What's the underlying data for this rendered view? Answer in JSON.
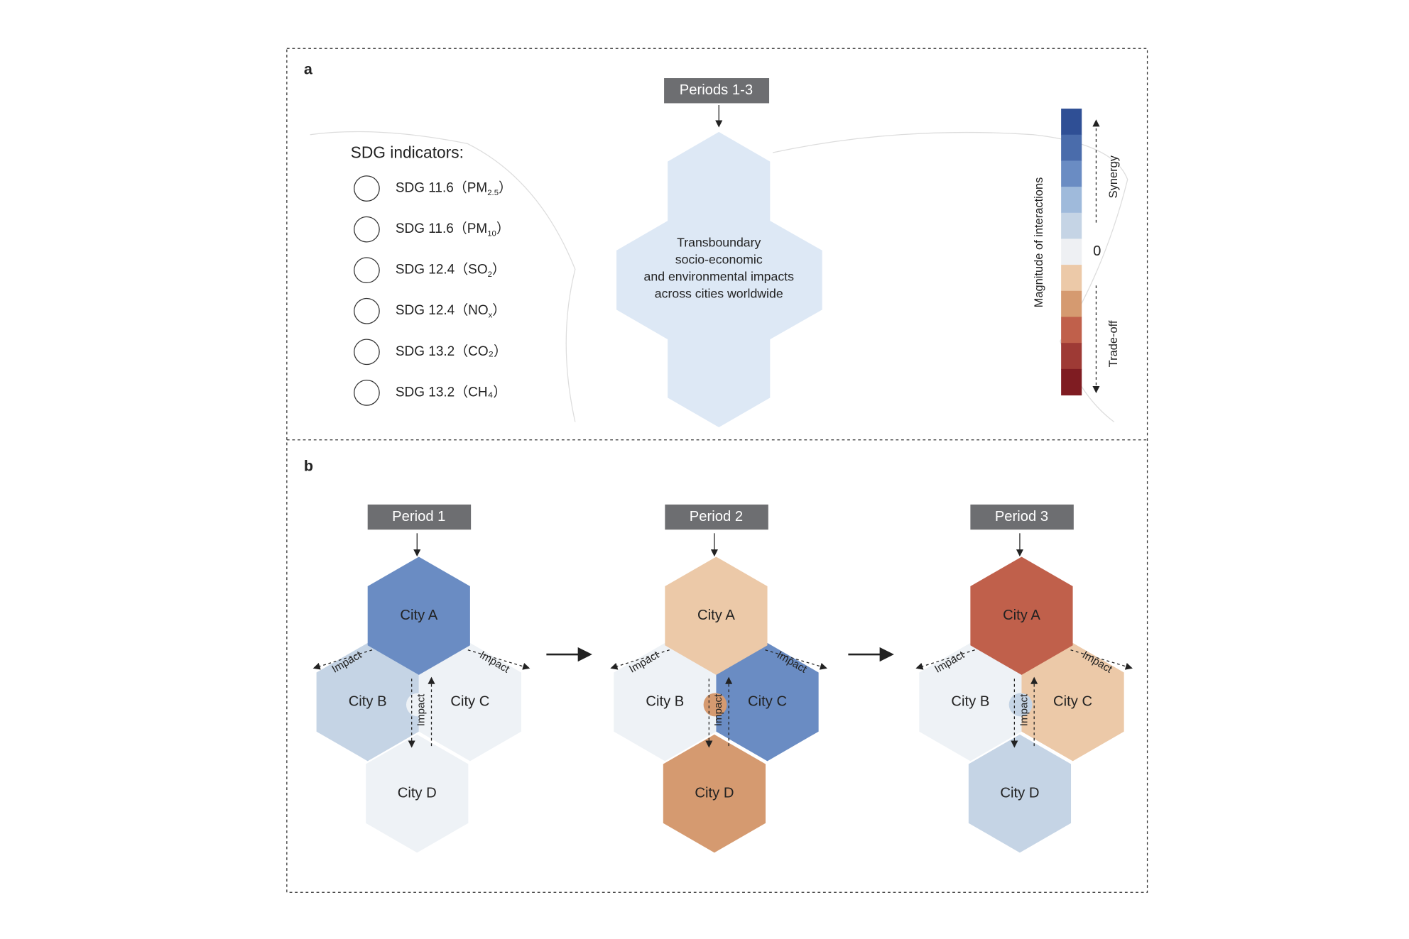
{
  "panel_a": {
    "label": "a",
    "period_tag": "Periods 1-3",
    "indicators_title": "SDG indicators:",
    "indicators": [
      {
        "prefix": "SDG 11.6（PM",
        "sub": "2.5",
        "suffix": "）"
      },
      {
        "prefix": "SDG 11.6（PM",
        "sub": "10",
        "suffix": "）"
      },
      {
        "prefix": "SDG 12.4（SO",
        "sub": "2",
        "suffix": "）"
      },
      {
        "prefix": "SDG 12.4（NO",
        "sub": "x",
        "suffix": "）"
      },
      {
        "prefix": "SDG 13.2（CO₂）"
      },
      {
        "prefix": "SDG 13.2（CH₄）"
      }
    ],
    "center_text": [
      "Transboundary",
      "socio-economic",
      "and environmental impacts",
      "across cities worldwide"
    ],
    "scale_title": "Magnitude of interactions",
    "synergy": "Synergy",
    "tradeoff": "Trade-off",
    "zero": "0",
    "scale_colors": [
      "#2f4f95",
      "#4a6cab",
      "#6a8cc3",
      "#9fbadb",
      "#c5d4e5",
      "#eef0f3",
      "#ecc9a8",
      "#d59a70",
      "#c0604b",
      "#9e3a35",
      "#7f1c22"
    ]
  },
  "panel_b": {
    "label": "b",
    "impact": "Impact",
    "periods": [
      {
        "name": "Period 1",
        "cities": [
          {
            "name": "City A",
            "color": "#6a8cc3"
          },
          {
            "name": "City B",
            "color": "#c5d4e5"
          },
          {
            "name": "City C",
            "color": "#eef2f6"
          },
          {
            "name": "City D",
            "color": "#eef2f6"
          }
        ]
      },
      {
        "name": "Period 2",
        "cities": [
          {
            "name": "City A",
            "color": "#ecc9a8"
          },
          {
            "name": "City B",
            "color": "#eef2f6"
          },
          {
            "name": "City C",
            "color": "#6a8cc3"
          },
          {
            "name": "City D",
            "color": "#d59a70"
          }
        ]
      },
      {
        "name": "Period 3",
        "cities": [
          {
            "name": "City A",
            "color": "#c0604b"
          },
          {
            "name": "City B",
            "color": "#eef2f6"
          },
          {
            "name": "City C",
            "color": "#ecc9a8"
          },
          {
            "name": "City D",
            "color": "#c5d4e5"
          }
        ]
      }
    ]
  }
}
